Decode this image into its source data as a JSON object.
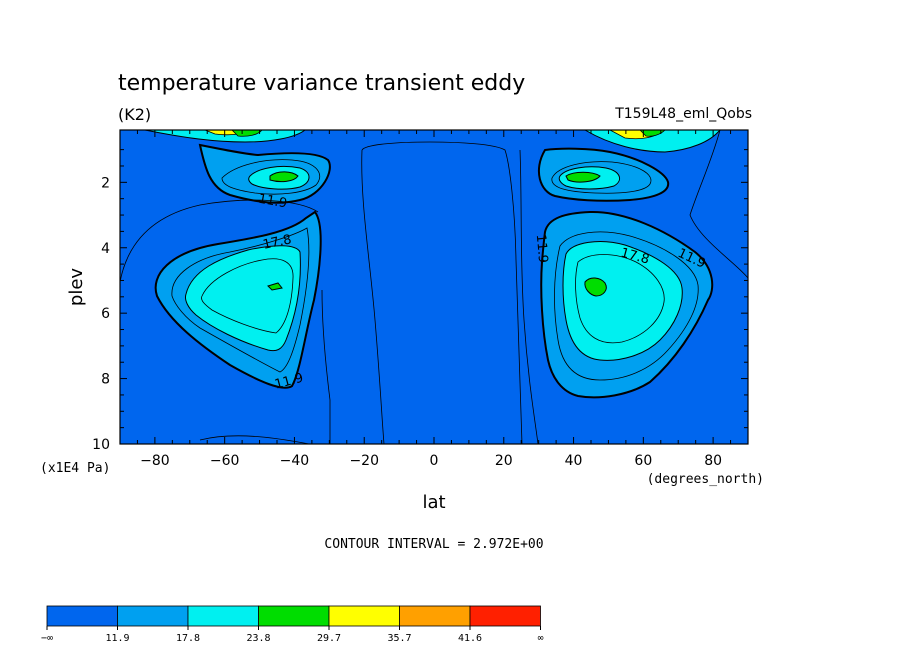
{
  "chart_data": {
    "type": "contour",
    "title": "temperature variance transient eddy",
    "units": "(K2)",
    "run_label": "T159L48_eml_Qobs",
    "xlabel": "lat",
    "x_units": "(degrees_north)",
    "ylabel": "plev",
    "y_units": "(x1E4 Pa)",
    "xlim": [
      -90,
      90
    ],
    "ylim": [
      0.4,
      10
    ],
    "y_inverted": true,
    "xticks": [
      "−80",
      "−60",
      "−40",
      "−20",
      "0",
      "20",
      "40",
      "60",
      "80"
    ],
    "xtick_values": [
      -80,
      -60,
      -40,
      -20,
      0,
      20,
      40,
      60,
      80
    ],
    "yticks": [
      "2",
      "4",
      "6",
      "8",
      "10"
    ],
    "ytick_values": [
      2,
      4,
      6,
      8,
      10
    ],
    "contour_interval_text": "CONTOUR INTERVAL = 2.972E+00",
    "contour_interval": 2.972,
    "contour_labels": [
      {
        "text": "11.9",
        "lat": -46,
        "plev": 2.35
      },
      {
        "text": "17.8",
        "lat": -44,
        "plev": 3.55
      },
      {
        "text": "11.9",
        "lat": -41,
        "plev": 8.0
      },
      {
        "text": "11.9",
        "lat": 30,
        "plev": 3.7
      },
      {
        "text": "17.8",
        "lat": 58,
        "plev": 4.0
      },
      {
        "text": "11.9",
        "lat": 73,
        "plev": 4.1
      }
    ],
    "colorbar": {
      "boundaries": [
        "−∞",
        "11.9",
        "17.8",
        "23.8",
        "29.7",
        "35.7",
        "41.6",
        "∞"
      ],
      "colors": [
        "#0066ee",
        "#00a0f0",
        "#00f0f0",
        "#00dd00",
        "#ffff00",
        "#ffa000",
        "#ff2000"
      ]
    }
  }
}
